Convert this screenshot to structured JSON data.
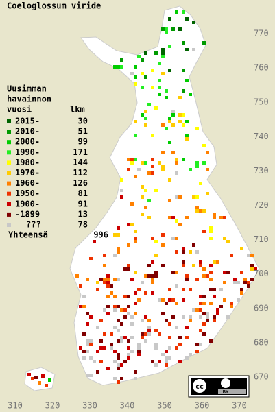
{
  "title": "Coeloglossum viride",
  "legend": {
    "heading": [
      "Uusimman",
      "havainnon",
      "vuosi"
    ],
    "count_heading": "lkm",
    "items": [
      {
        "label": "2015-",
        "count": 30,
        "color": "#006400"
      },
      {
        "label": "2010-",
        "count": 51,
        "color": "#009a00"
      },
      {
        "label": "2000-",
        "count": 99,
        "color": "#00cc00"
      },
      {
        "label": "1990-",
        "count": 171,
        "color": "#22ee22"
      },
      {
        "label": "1980-",
        "count": 144,
        "color": "#ffff00"
      },
      {
        "label": "1970-",
        "count": 112,
        "color": "#ffcc00"
      },
      {
        "label": "1960-",
        "count": 126,
        "color": "#ff8000"
      },
      {
        "label": "1950-",
        "count": 81,
        "color": "#ee3300"
      },
      {
        "label": "1900-",
        "count": 91,
        "color": "#cc0000"
      },
      {
        "label": "-1899",
        "count": 13,
        "color": "#800000"
      },
      {
        "label": "???",
        "count": 78,
        "color": "#c8c8c8"
      }
    ],
    "total_label": "Yhteensä",
    "total": 996
  },
  "axes": {
    "y_labels": [
      770,
      760,
      750,
      740,
      730,
      720,
      710,
      700,
      690,
      680,
      670
    ],
    "x_labels": [
      310,
      320,
      330,
      340,
      350,
      360,
      370
    ]
  },
  "badge": {
    "cc": "cc",
    "by": "BY"
  }
}
